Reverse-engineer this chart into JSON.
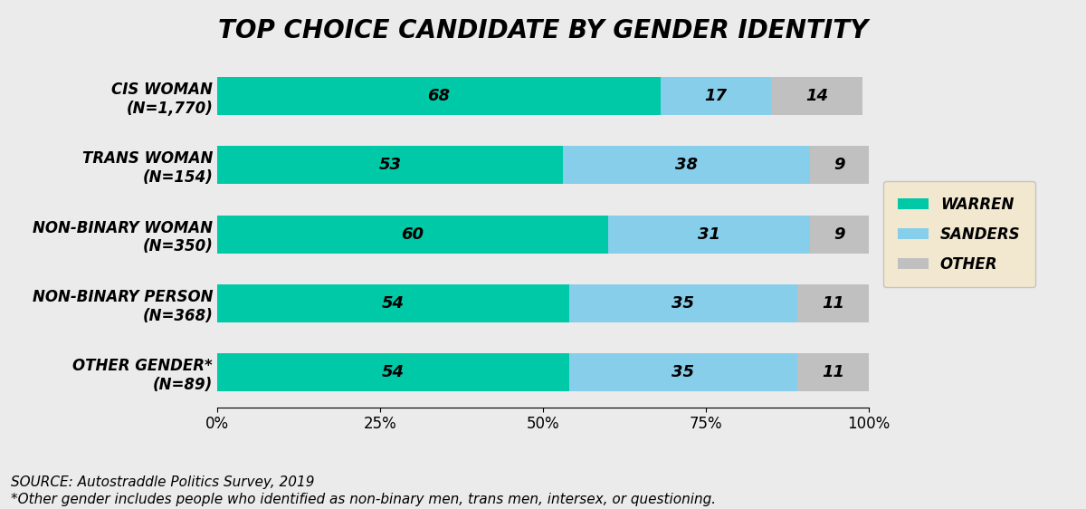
{
  "title": "TOP CHOICE CANDIDATE BY GENDER IDENTITY",
  "categories": [
    "CIS WOMAN\n(N=1,770)",
    "TRANS WOMAN\n(N=154)",
    "NON-BINARY WOMAN\n(N=350)",
    "NON-BINARY PERSON\n(N=368)",
    "OTHER GENDER*\n(N=89)"
  ],
  "warren": [
    68,
    53,
    60,
    54,
    54
  ],
  "sanders": [
    17,
    38,
    31,
    35,
    35
  ],
  "other": [
    14,
    9,
    9,
    11,
    11
  ],
  "warren_color": "#00C9A7",
  "sanders_color": "#87CEEB",
  "other_color": "#C0C0C0",
  "legend_labels": [
    "WARREN",
    "SANDERS",
    "OTHER"
  ],
  "legend_bg": "#F5E6C8",
  "background_color": "#EBEBEB",
  "source_text": "SOURCE: Autostraddle Politics Survey, 2019",
  "footnote_text": "*Other gender includes people who identified as non-binary men, trans men, intersex, or questioning.",
  "title_fontsize": 20,
  "label_fontsize": 12,
  "bar_label_fontsize": 13,
  "tick_label_fontsize": 12,
  "source_fontsize": 11
}
